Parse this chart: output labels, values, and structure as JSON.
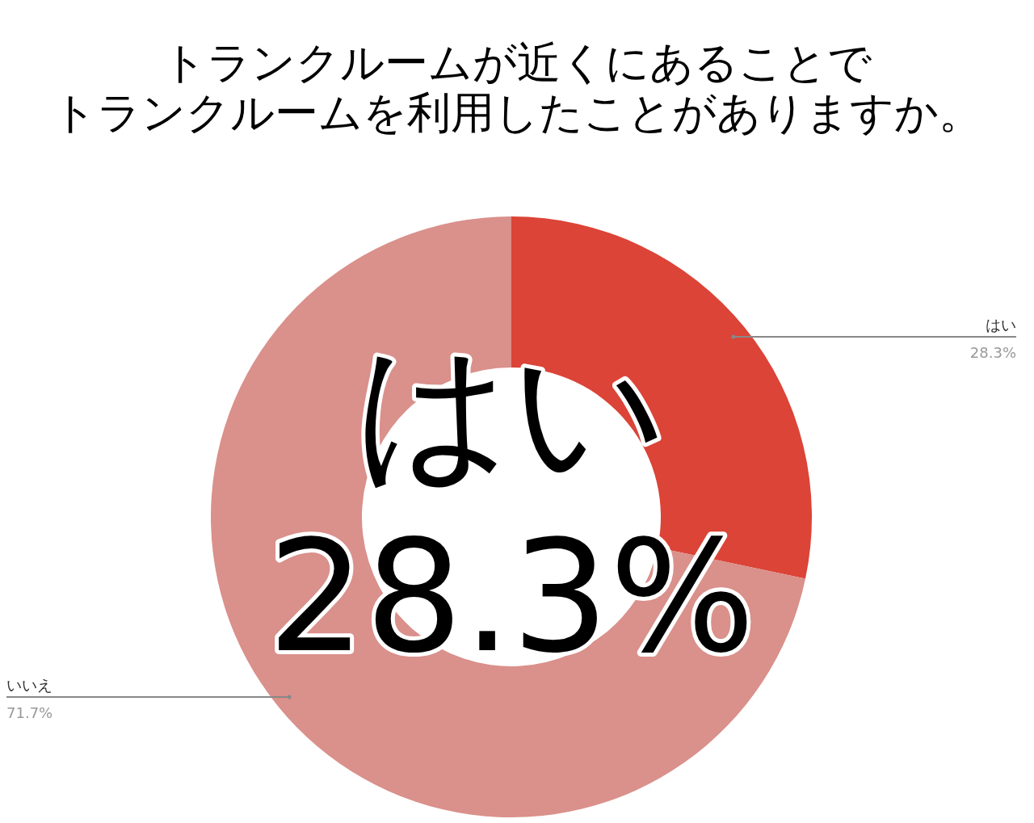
{
  "chart_data": {
    "type": "donut",
    "title": "トランクルームが近くにあることで",
    "subtitle": "トランクルームを利用したことがありますか。",
    "categories": [
      "はい",
      "いいえ"
    ],
    "values": [
      28.3,
      71.7
    ],
    "colors": [
      "#db4437",
      "#da908b"
    ],
    "value_labels": [
      "28.3%",
      "71.7%"
    ],
    "annotations": [
      "はい",
      "28.3%"
    ]
  }
}
